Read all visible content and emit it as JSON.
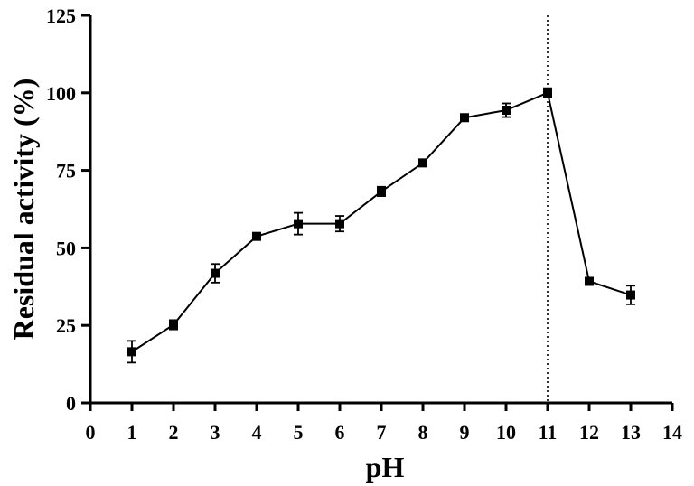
{
  "chart_data": {
    "type": "line",
    "xlabel": "pH",
    "ylabel": "Residual activity (%)",
    "xlim": [
      0,
      14
    ],
    "ylim": [
      0,
      125
    ],
    "x_ticks": [
      0,
      1,
      2,
      3,
      4,
      5,
      6,
      7,
      8,
      9,
      10,
      11,
      12,
      13,
      14
    ],
    "y_ticks": [
      0,
      25,
      50,
      75,
      100,
      125
    ],
    "grid": false,
    "reference_line": {
      "x": 11,
      "style": "dotted"
    },
    "series": [
      {
        "marker": "square",
        "color": "#000000",
        "points": [
          {
            "x": 1,
            "y": 16.5,
            "err": 3.5
          },
          {
            "x": 2,
            "y": 25.2,
            "err": 1.5
          },
          {
            "x": 3,
            "y": 41.8,
            "err": 3.0
          },
          {
            "x": 4,
            "y": 53.7,
            "err": 0.6
          },
          {
            "x": 5,
            "y": 57.8,
            "err": 3.5
          },
          {
            "x": 6,
            "y": 57.8,
            "err": 2.5
          },
          {
            "x": 7,
            "y": 68.2,
            "err": 1.5
          },
          {
            "x": 8,
            "y": 77.4,
            "err": 1.0
          },
          {
            "x": 9,
            "y": 92.0,
            "err": 0.6
          },
          {
            "x": 10,
            "y": 94.4,
            "err": 2.2
          },
          {
            "x": 11,
            "y": 100.0,
            "err": 1.5
          },
          {
            "x": 12,
            "y": 39.2,
            "err": 0.6
          },
          {
            "x": 13,
            "y": 34.8,
            "err": 3.0
          }
        ]
      }
    ]
  }
}
